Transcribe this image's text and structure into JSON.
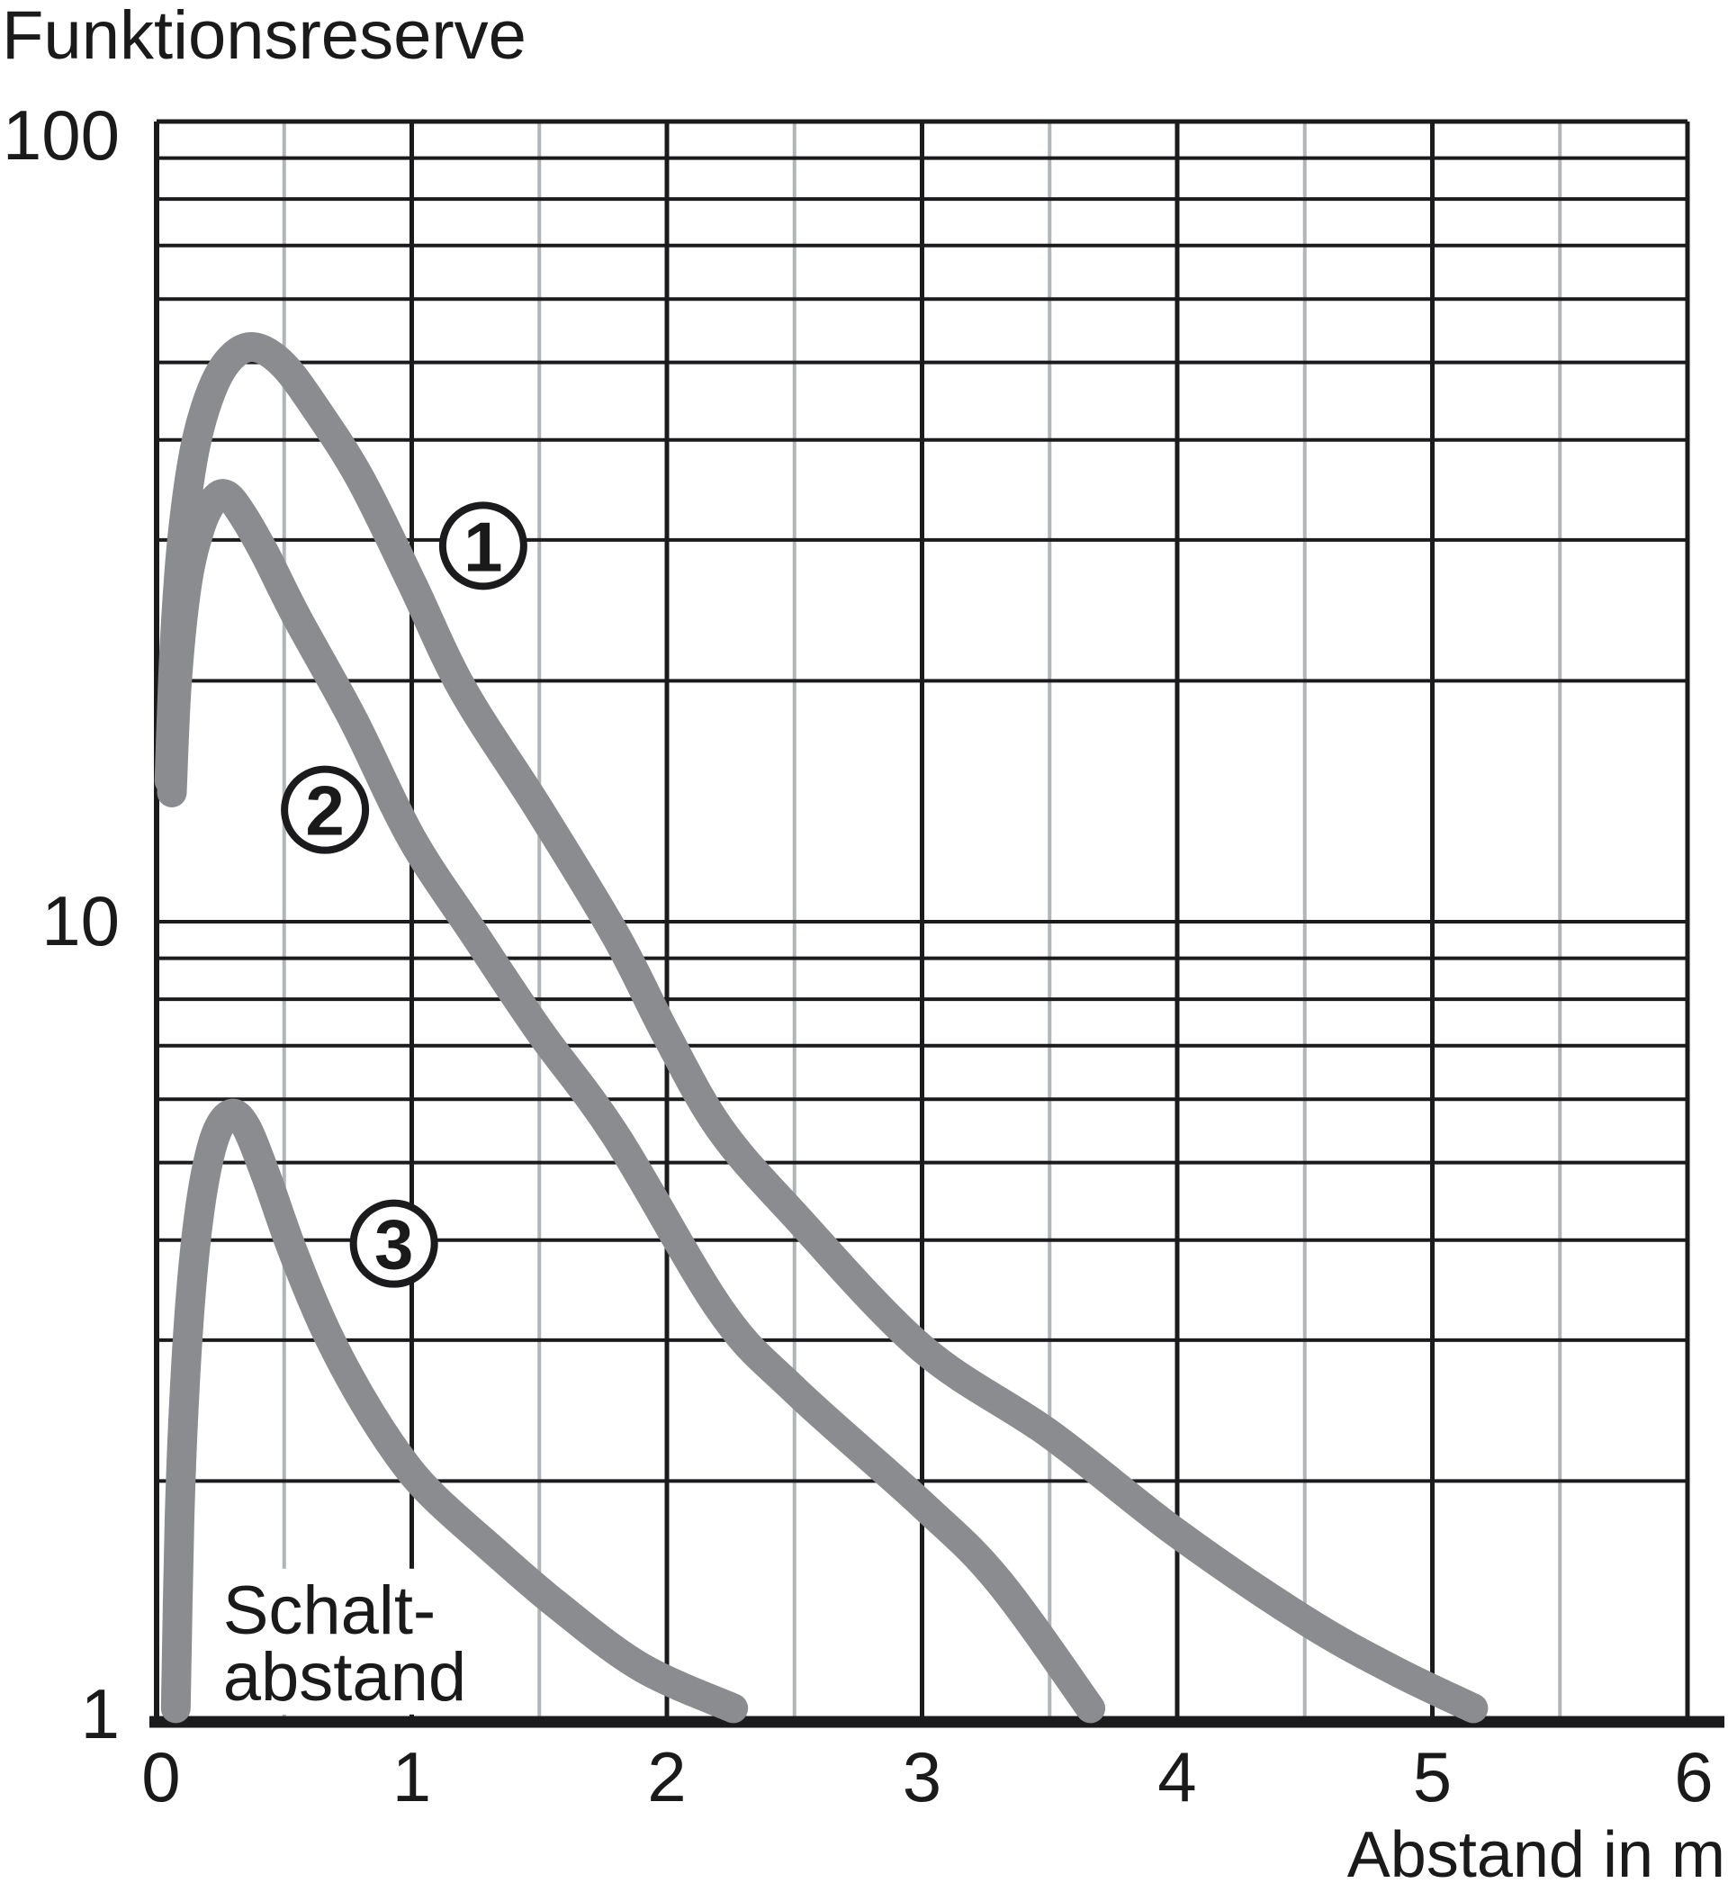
{
  "chart_data": {
    "type": "line",
    "title": "Funktionsreserve",
    "xlabel": "Abstand in m",
    "ylabel": "Funktionsreserve",
    "xlim": [
      0,
      6
    ],
    "ylim": [
      1,
      100
    ],
    "yscale": "log",
    "grid": true,
    "xticks": [
      0,
      1,
      2,
      3,
      4,
      5,
      6
    ],
    "xtick_labels": [
      "0",
      "1",
      "2",
      "3",
      "4",
      "5",
      "6"
    ],
    "x_minor_interval": 0.5,
    "yticks": [
      100,
      10,
      1
    ],
    "ytick_labels": [
      "100",
      "10",
      "1"
    ],
    "y_gridlines_per_decade": [
      2,
      3,
      4,
      5,
      6,
      7,
      8,
      9,
      10
    ],
    "series": [
      {
        "name": "Kurve 1",
        "marker_label": "1",
        "label_x": 1.28,
        "label_y": 29.5,
        "points": [
          [
            0.05,
            15
          ],
          [
            0.07,
            22
          ],
          [
            0.1,
            30
          ],
          [
            0.15,
            39
          ],
          [
            0.22,
            46.5
          ],
          [
            0.3,
            51
          ],
          [
            0.39,
            52.2
          ],
          [
            0.5,
            49.5
          ],
          [
            0.63,
            43.5
          ],
          [
            0.8,
            35.7
          ],
          [
            1.0,
            26.5
          ],
          [
            1.2,
            19.5
          ],
          [
            1.5,
            13.8
          ],
          [
            1.8,
            9.6
          ],
          [
            2.0,
            7.2
          ],
          [
            2.21,
            5.5
          ],
          [
            2.5,
            4.3
          ],
          [
            3.0,
            2.93
          ],
          [
            3.5,
            2.29
          ],
          [
            4.0,
            1.72
          ],
          [
            4.5,
            1.34
          ],
          [
            4.85,
            1.16
          ],
          [
            5.16,
            1.04
          ]
        ]
      },
      {
        "name": "Kurve 2",
        "marker_label": "2",
        "label_x": 0.66,
        "label_y": 13.8,
        "points": [
          [
            0.06,
            14.5
          ],
          [
            0.08,
            20
          ],
          [
            0.12,
            26.5
          ],
          [
            0.17,
            31
          ],
          [
            0.22,
            33.5
          ],
          [
            0.27,
            34.2
          ],
          [
            0.33,
            32.5
          ],
          [
            0.42,
            29
          ],
          [
            0.55,
            24
          ],
          [
            0.77,
            17.9
          ],
          [
            1.0,
            12.7
          ],
          [
            1.25,
            9.6
          ],
          [
            1.5,
            7.3
          ],
          [
            1.8,
            5.4
          ],
          [
            2.21,
            3.27
          ],
          [
            2.5,
            2.6
          ],
          [
            3.0,
            1.87
          ],
          [
            3.3,
            1.5
          ],
          [
            3.66,
            1.04
          ]
        ]
      },
      {
        "name": "Kurve 3",
        "marker_label": "3",
        "label_x": 0.93,
        "label_y": 3.96,
        "points": [
          [
            0.075,
            1.04
          ],
          [
            0.09,
            1.8
          ],
          [
            0.11,
            2.6
          ],
          [
            0.14,
            3.6
          ],
          [
            0.18,
            4.6
          ],
          [
            0.23,
            5.4
          ],
          [
            0.29,
            5.75
          ],
          [
            0.35,
            5.55
          ],
          [
            0.43,
            4.8
          ],
          [
            0.53,
            3.9
          ],
          [
            0.66,
            3.1
          ],
          [
            0.8,
            2.55
          ],
          [
            0.95,
            2.15
          ],
          [
            1.08,
            1.92
          ],
          [
            1.3,
            1.66
          ],
          [
            1.57,
            1.4
          ],
          [
            1.9,
            1.17
          ],
          [
            2.26,
            1.04
          ]
        ]
      }
    ],
    "annotation": {
      "lines": [
        "Schalt-",
        "abstand"
      ],
      "x": 0.26,
      "y": 1.53
    }
  },
  "colors": {
    "background": "#ffffff",
    "curve": "#8a8c8f",
    "grid_major": "#1b1b1d",
    "grid_minor": "#b2b5b7",
    "text": "#1a1a1a"
  }
}
